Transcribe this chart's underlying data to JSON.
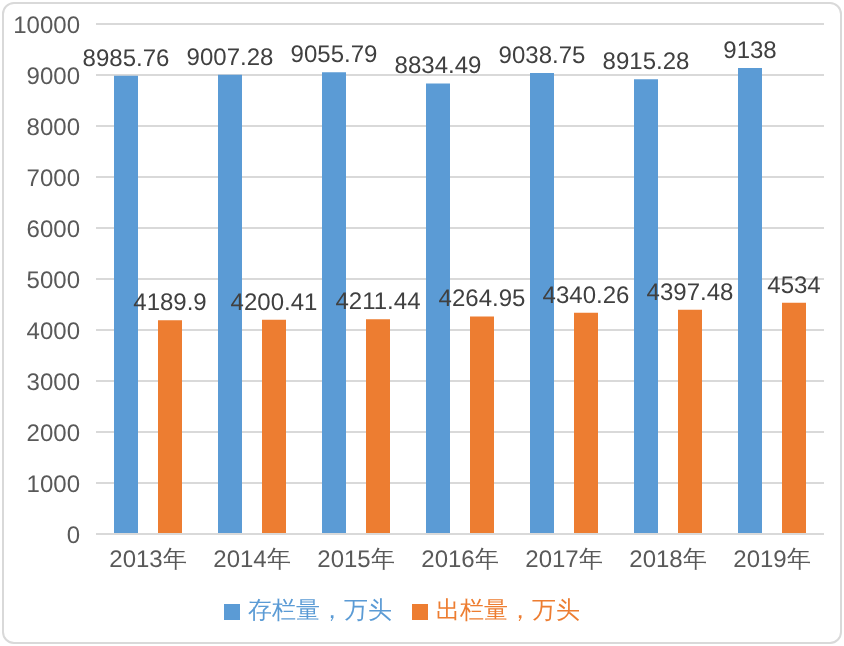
{
  "chart_data": {
    "type": "bar",
    "categories": [
      "2013年",
      "2014年",
      "2015年",
      "2016年",
      "2017年",
      "2018年",
      "2019年"
    ],
    "series": [
      {
        "name": "存栏量，万头",
        "color": "#5b9bd5",
        "values": [
          8985.76,
          9007.28,
          9055.79,
          8834.49,
          9038.75,
          8915.28,
          9138
        ]
      },
      {
        "name": "出栏量，万头",
        "color": "#ed7d31",
        "values": [
          4189.9,
          4200.41,
          4211.44,
          4264.95,
          4340.26,
          4397.48,
          4534
        ]
      }
    ],
    "ylim": [
      0,
      10000
    ],
    "yticks": [
      0,
      1000,
      2000,
      3000,
      4000,
      5000,
      6000,
      7000,
      8000,
      9000,
      10000
    ],
    "grid": "y",
    "legend": "bottom",
    "data_labels": true
  }
}
